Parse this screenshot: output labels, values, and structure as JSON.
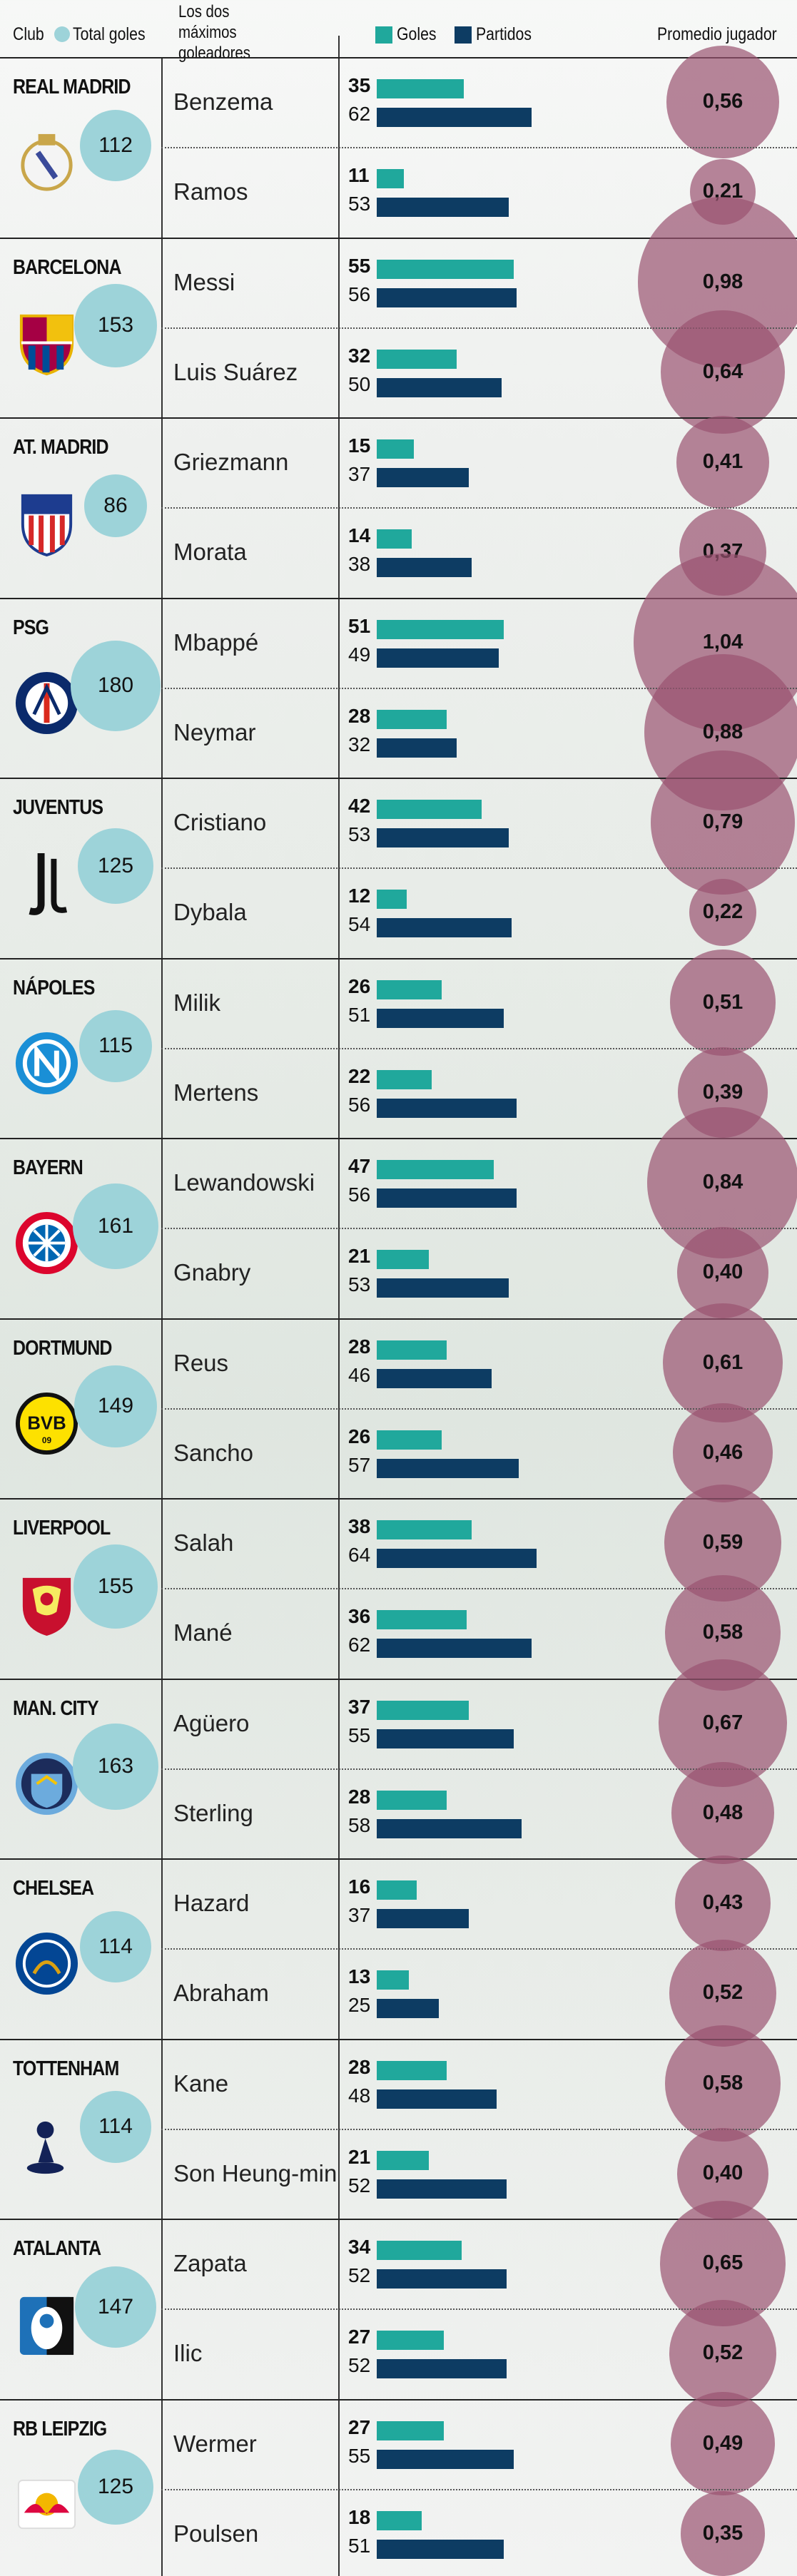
{
  "header": {
    "club": "Club",
    "total_goals": "Total goles",
    "top_scorers": "Los dos máximos goleadores",
    "goals": "Goles",
    "matches": "Partidos",
    "average": "Promedio jugador"
  },
  "colors": {
    "goals": "#20a89c",
    "matches": "#0d3c63",
    "total": "#9dd3d9",
    "average": "#9a5270"
  },
  "chart_data": {
    "type": "bar",
    "legend": [
      "Goles",
      "Partidos"
    ],
    "clubs": [
      {
        "club": "REAL MADRID",
        "total": 112,
        "crest": "real-madrid-crest",
        "players": [
          {
            "name": "Benzema",
            "goals": 35,
            "matches": 62,
            "avg": "0,56"
          },
          {
            "name": "Ramos",
            "goals": 11,
            "matches": 53,
            "avg": "0,21"
          }
        ]
      },
      {
        "club": "BARCELONA",
        "total": 153,
        "crest": "barcelona-crest",
        "players": [
          {
            "name": "Messi",
            "goals": 55,
            "matches": 56,
            "avg": "0,98"
          },
          {
            "name": "Luis Suárez",
            "goals": 32,
            "matches": 50,
            "avg": "0,64"
          }
        ]
      },
      {
        "club": "AT. MADRID",
        "total": 86,
        "crest": "atletico-crest",
        "players": [
          {
            "name": "Griezmann",
            "goals": 15,
            "matches": 37,
            "avg": "0,41"
          },
          {
            "name": "Morata",
            "goals": 14,
            "matches": 38,
            "avg": "0,37"
          }
        ]
      },
      {
        "club": "PSG",
        "total": 180,
        "crest": "psg-crest",
        "players": [
          {
            "name": "Mbappé",
            "goals": 51,
            "matches": 49,
            "avg": "1,04"
          },
          {
            "name": "Neymar",
            "goals": 28,
            "matches": 32,
            "avg": "0,88"
          }
        ]
      },
      {
        "club": "JUVENTUS",
        "total": 125,
        "crest": "juventus-crest",
        "players": [
          {
            "name": "Cristiano",
            "goals": 42,
            "matches": 53,
            "avg": "0,79"
          },
          {
            "name": "Dybala",
            "goals": 12,
            "matches": 54,
            "avg": "0,22"
          }
        ]
      },
      {
        "club": "NÁPOLES",
        "total": 115,
        "crest": "napoli-crest",
        "players": [
          {
            "name": "Milik",
            "goals": 26,
            "matches": 51,
            "avg": "0,51"
          },
          {
            "name": "Mertens",
            "goals": 22,
            "matches": 56,
            "avg": "0,39"
          }
        ]
      },
      {
        "club": "BAYERN",
        "total": 161,
        "crest": "bayern-crest",
        "players": [
          {
            "name": "Lewandowski",
            "goals": 47,
            "matches": 56,
            "avg": "0,84"
          },
          {
            "name": "Gnabry",
            "goals": 21,
            "matches": 53,
            "avg": "0,40"
          }
        ]
      },
      {
        "club": "DORTMUND",
        "total": 149,
        "crest": "dortmund-crest",
        "players": [
          {
            "name": "Reus",
            "goals": 28,
            "matches": 46,
            "avg": "0,61"
          },
          {
            "name": "Sancho",
            "goals": 26,
            "matches": 57,
            "avg": "0,46"
          }
        ]
      },
      {
        "club": "LIVERPOOL",
        "total": 155,
        "crest": "liverpool-crest",
        "players": [
          {
            "name": "Salah",
            "goals": 38,
            "matches": 64,
            "avg": "0,59"
          },
          {
            "name": "Mané",
            "goals": 36,
            "matches": 62,
            "avg": "0,58"
          }
        ]
      },
      {
        "club": "MAN. CITY",
        "total": 163,
        "crest": "man-city-crest",
        "players": [
          {
            "name": "Agüero",
            "goals": 37,
            "matches": 55,
            "avg": "0,67"
          },
          {
            "name": "Sterling",
            "goals": 28,
            "matches": 58,
            "avg": "0,48"
          }
        ]
      },
      {
        "club": "CHELSEA",
        "total": 114,
        "crest": "chelsea-crest",
        "players": [
          {
            "name": "Hazard",
            "goals": 16,
            "matches": 37,
            "avg": "0,43"
          },
          {
            "name": "Abraham",
            "goals": 13,
            "matches": 25,
            "avg": "0,52"
          }
        ]
      },
      {
        "club": "TOTTENHAM",
        "total": 114,
        "crest": "tottenham-crest",
        "players": [
          {
            "name": "Kane",
            "goals": 28,
            "matches": 48,
            "avg": "0,58"
          },
          {
            "name": "Son Heung-min",
            "goals": 21,
            "matches": 52,
            "avg": "0,40"
          }
        ]
      },
      {
        "club": "ATALANTA",
        "total": 147,
        "crest": "atalanta-crest",
        "players": [
          {
            "name": "Zapata",
            "goals": 34,
            "matches": 52,
            "avg": "0,65"
          },
          {
            "name": "Ilic",
            "goals": 27,
            "matches": 52,
            "avg": "0,52"
          }
        ]
      },
      {
        "club": "RB LEIPZIG",
        "total": 125,
        "crest": "leipzig-crest",
        "players": [
          {
            "name": "Wermer",
            "goals": 27,
            "matches": 55,
            "avg": "0,49"
          },
          {
            "name": "Poulsen",
            "goals": 18,
            "matches": 51,
            "avg": "0,35"
          }
        ]
      }
    ]
  }
}
